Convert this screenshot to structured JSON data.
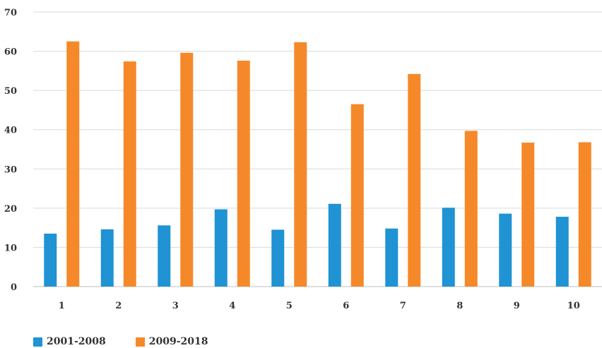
{
  "chart_data": {
    "type": "bar",
    "title": "",
    "xlabel": "",
    "ylabel": "",
    "categories": [
      "1",
      "2",
      "3",
      "4",
      "5",
      "6",
      "7",
      "8",
      "9",
      "10"
    ],
    "series": [
      {
        "name": "2001-2008",
        "color": "#1f93d3",
        "values": [
          13.5,
          14.6,
          15.6,
          19.7,
          14.5,
          21.1,
          14.8,
          20.1,
          18.6,
          17.8
        ]
      },
      {
        "name": "2009-2018",
        "color": "#f5892a",
        "values": [
          62.5,
          57.4,
          59.6,
          57.6,
          62.3,
          46.5,
          54.2,
          39.7,
          36.7,
          36.8
        ]
      }
    ],
    "ylim": [
      0,
      70
    ],
    "yticks": [
      "0",
      "10",
      "20",
      "30",
      "40",
      "50",
      "60",
      "70"
    ],
    "grid": true,
    "legend": "bottom-left"
  }
}
